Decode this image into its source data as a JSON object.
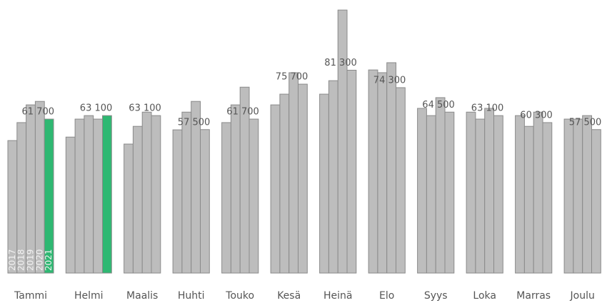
{
  "chart_data": {
    "type": "bar",
    "categories": [
      "Tammi",
      "Helmi",
      "Maalis",
      "Huhti",
      "Touko",
      "Kesä",
      "Heinä",
      "Elo",
      "Syys",
      "Loka",
      "Marras",
      "Joulu"
    ],
    "series": [
      {
        "name": "2017",
        "color": "#bdbdbd",
        "values": [
          53100,
          54500,
          51700,
          57400,
          60300,
          67400,
          71700,
          81400,
          66000,
          64500,
          63100,
          61700
        ]
      },
      {
        "name": "2018",
        "color": "#bdbdbd",
        "values": [
          60300,
          61700,
          58800,
          64500,
          67400,
          71700,
          77100,
          80300,
          63100,
          61700,
          58800,
          61700
        ]
      },
      {
        "name": "2019",
        "color": "#bdbdbd",
        "values": [
          67400,
          63100,
          64500,
          68800,
          74500,
          80300,
          105400,
          84300,
          70300,
          66000,
          64500,
          63100
        ]
      },
      {
        "name": "2020",
        "color": "#bdbdbd",
        "values": [
          68800,
          61700,
          63100,
          57500,
          61700,
          75700,
          81300,
          74300,
          64500,
          63100,
          60300,
          57500
        ],
        "value_labels": [
          null,
          null,
          "63 100",
          "57 500",
          "61 700",
          "75 700",
          "81 300",
          "74 300",
          "64 500",
          "63 100",
          "60 300",
          "57 500"
        ]
      },
      {
        "name": "2021",
        "color": "#2eb872",
        "values": [
          61700,
          63100,
          null,
          null,
          null,
          null,
          null,
          null,
          null,
          null,
          null,
          null
        ],
        "value_labels": [
          "61 700",
          "63 100",
          null,
          null,
          null,
          null,
          null,
          null,
          null,
          null,
          null,
          null
        ]
      }
    ],
    "ylim": [
      0,
      110000
    ]
  }
}
